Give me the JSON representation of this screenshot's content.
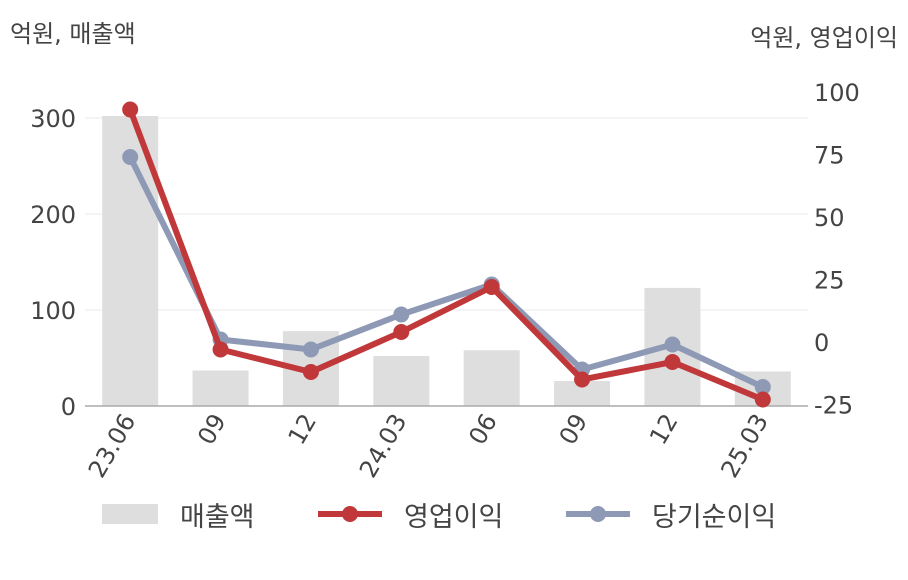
{
  "left_unit": "억원, 매출액",
  "right_unit": "억원, 영업이익",
  "legend": {
    "sales": "매출액",
    "operating": "영업이익",
    "net": "당기순이익"
  },
  "colors": {
    "bar": "#dedede",
    "operating": "#c0383a",
    "net": "#8e9ab5",
    "grid": "#e8e8e8",
    "axis": "#aaaaaa",
    "text": "#444444"
  },
  "chart_data": {
    "type": "bar",
    "categories": [
      "23.06",
      "09",
      "12",
      "24.03",
      "06",
      "09",
      "12",
      "25.03"
    ],
    "left_axis": {
      "ticks": [
        0,
        100,
        200,
        300
      ],
      "ylim": [
        0,
        320
      ]
    },
    "right_axis": {
      "ticks": [
        -25,
        0,
        25,
        50,
        75,
        100
      ],
      "ylim": [
        -25,
        100
      ]
    },
    "series": [
      {
        "name": "매출액",
        "type": "bar",
        "axis": "left",
        "values": [
          302,
          37,
          78,
          52,
          58,
          26,
          123,
          36
        ]
      },
      {
        "name": "영업이익",
        "type": "line",
        "axis": "right",
        "values": [
          93,
          -3,
          -12,
          4,
          22,
          -15,
          -8,
          -23
        ]
      },
      {
        "name": "당기순이익",
        "type": "line",
        "axis": "right",
        "values": [
          74,
          1,
          -3,
          11,
          23,
          -11,
          -1,
          -18
        ]
      }
    ]
  }
}
